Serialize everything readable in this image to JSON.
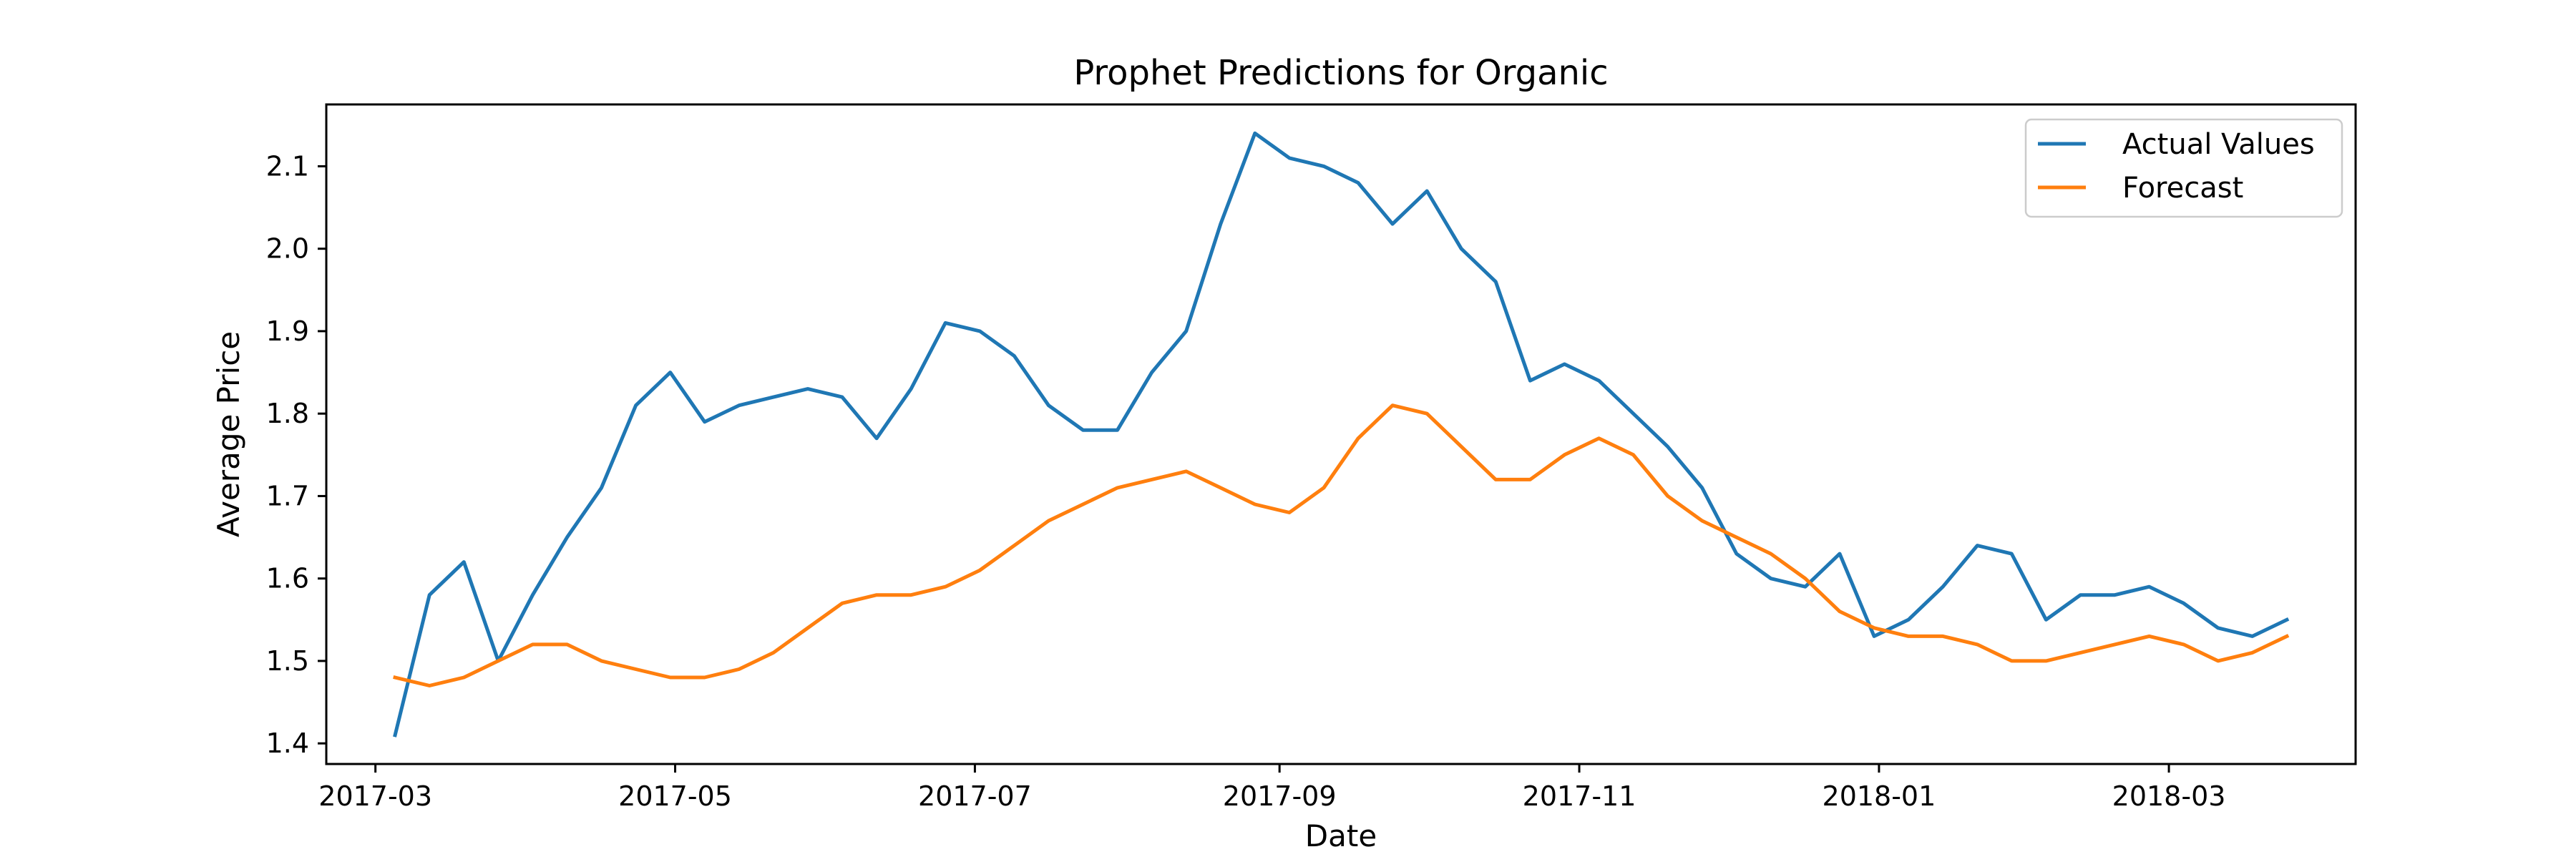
{
  "chart_data": {
    "type": "line",
    "title": "Prophet Predictions for Organic",
    "xlabel": "Date",
    "ylabel": "Average Price",
    "xlim": [
      "2017-02-19",
      "2018-04-08"
    ],
    "ylim": [
      1.375,
      2.175
    ],
    "xticks": [
      "2017-03",
      "2017-05",
      "2017-07",
      "2017-09",
      "2017-11",
      "2018-01",
      "2018-03"
    ],
    "xtick_dates": [
      "2017-03-01",
      "2017-05-01",
      "2017-07-01",
      "2017-09-01",
      "2017-11-01",
      "2018-01-01",
      "2018-03-01"
    ],
    "yticks": [
      "1.4",
      "1.5",
      "1.6",
      "1.7",
      "1.8",
      "1.9",
      "2.0",
      "2.1"
    ],
    "ytick_values": [
      1.4,
      1.5,
      1.6,
      1.7,
      1.8,
      1.9,
      2.0,
      2.1
    ],
    "grid": false,
    "legend_position": "top-right",
    "x": [
      "2017-03-05",
      "2017-03-12",
      "2017-03-19",
      "2017-03-26",
      "2017-04-02",
      "2017-04-09",
      "2017-04-16",
      "2017-04-23",
      "2017-04-30",
      "2017-05-07",
      "2017-05-14",
      "2017-05-21",
      "2017-05-28",
      "2017-06-04",
      "2017-06-11",
      "2017-06-18",
      "2017-06-25",
      "2017-07-02",
      "2017-07-09",
      "2017-07-16",
      "2017-07-23",
      "2017-07-30",
      "2017-08-06",
      "2017-08-13",
      "2017-08-20",
      "2017-08-27",
      "2017-09-03",
      "2017-09-10",
      "2017-09-17",
      "2017-09-24",
      "2017-10-01",
      "2017-10-08",
      "2017-10-15",
      "2017-10-22",
      "2017-10-29",
      "2017-11-05",
      "2017-11-12",
      "2017-11-19",
      "2017-11-26",
      "2017-12-03",
      "2017-12-10",
      "2017-12-17",
      "2017-12-24",
      "2017-12-31",
      "2018-01-07",
      "2018-01-14",
      "2018-01-21",
      "2018-01-28",
      "2018-02-04",
      "2018-02-11",
      "2018-02-18",
      "2018-02-25",
      "2018-03-04",
      "2018-03-11",
      "2018-03-18",
      "2018-03-25"
    ],
    "series": [
      {
        "name": "Actual Values",
        "color": "#1f77b4",
        "values": [
          1.41,
          1.58,
          1.62,
          1.5,
          1.58,
          1.65,
          1.71,
          1.81,
          1.85,
          1.79,
          1.81,
          1.82,
          1.83,
          1.82,
          1.77,
          1.83,
          1.91,
          1.9,
          1.87,
          1.81,
          1.78,
          1.78,
          1.85,
          1.9,
          2.03,
          2.14,
          2.11,
          2.1,
          2.08,
          2.03,
          2.07,
          2.0,
          1.96,
          1.84,
          1.86,
          1.84,
          1.8,
          1.76,
          1.71,
          1.63,
          1.6,
          1.59,
          1.63,
          1.53,
          1.55,
          1.59,
          1.64,
          1.63,
          1.55,
          1.58,
          1.58,
          1.59,
          1.57,
          1.54,
          1.53,
          1.55
        ]
      },
      {
        "name": "Forecast",
        "color": "#ff7f0e",
        "values": [
          1.48,
          1.47,
          1.48,
          1.5,
          1.52,
          1.52,
          1.5,
          1.49,
          1.48,
          1.48,
          1.49,
          1.51,
          1.54,
          1.57,
          1.58,
          1.58,
          1.59,
          1.61,
          1.64,
          1.67,
          1.69,
          1.71,
          1.72,
          1.73,
          1.71,
          1.69,
          1.68,
          1.71,
          1.77,
          1.81,
          1.8,
          1.76,
          1.72,
          1.72,
          1.75,
          1.77,
          1.75,
          1.7,
          1.67,
          1.65,
          1.63,
          1.6,
          1.56,
          1.54,
          1.53,
          1.53,
          1.52,
          1.5,
          1.5,
          1.51,
          1.52,
          1.53,
          1.52,
          1.5,
          1.51,
          1.53
        ]
      }
    ]
  }
}
